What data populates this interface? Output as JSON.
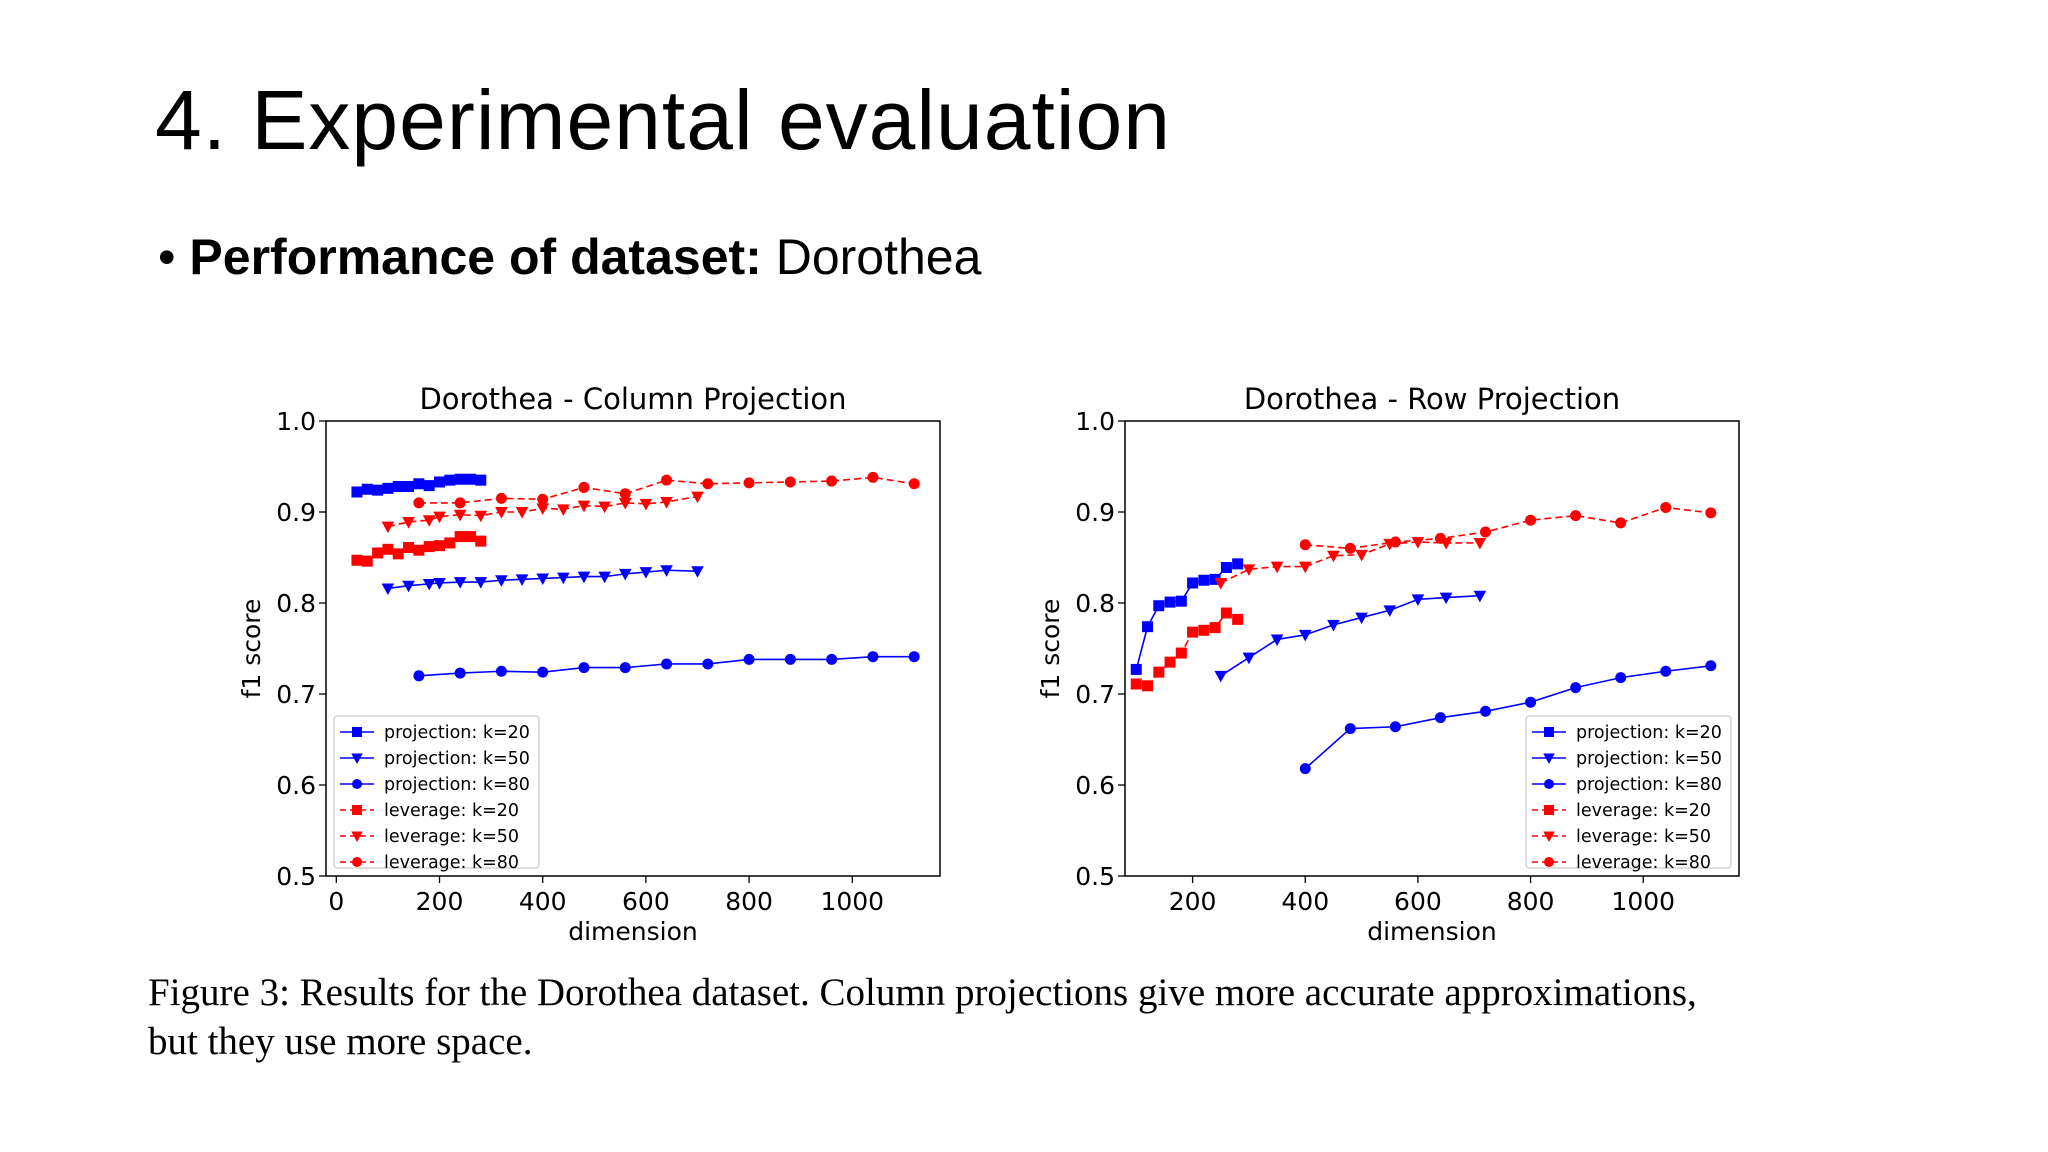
{
  "slide": {
    "title": "4. Experimental evaluation",
    "bullet_bold": "Performance of dataset:",
    "bullet_rest": " Dorothea",
    "bullet_symbol": "•",
    "caption_line1": "Figure 3: Results for the Dorothea dataset. Column projections give more accurate approximations,",
    "caption_line2": "but they use more space."
  },
  "chart_data": [
    {
      "type": "line",
      "title": "Dorothea - Column Projection",
      "xlabel": "dimension",
      "ylabel": "f1 score",
      "xlim": [
        -20,
        1170
      ],
      "ylim": [
        0.5,
        1.0
      ],
      "xticks": [
        0,
        200,
        400,
        600,
        800,
        1000
      ],
      "yticks": [
        0.5,
        0.6,
        0.7,
        0.8,
        0.9,
        1.0
      ],
      "legend_position": "lower-left",
      "series": [
        {
          "name": "projection: k=20",
          "color": "#0000ff",
          "marker": "square",
          "dashed": false,
          "x": [
            40,
            60,
            80,
            100,
            120,
            140,
            160,
            180,
            200,
            220,
            240,
            260,
            280
          ],
          "y": [
            0.922,
            0.925,
            0.924,
            0.926,
            0.928,
            0.928,
            0.931,
            0.929,
            0.933,
            0.935,
            0.936,
            0.936,
            0.935
          ]
        },
        {
          "name": "projection: k=50",
          "color": "#0000ff",
          "marker": "triangle-down",
          "dashed": false,
          "x": [
            100,
            140,
            180,
            200,
            240,
            280,
            320,
            360,
            400,
            440,
            480,
            520,
            560,
            600,
            640,
            700
          ],
          "y": [
            0.816,
            0.819,
            0.821,
            0.822,
            0.823,
            0.823,
            0.825,
            0.826,
            0.827,
            0.828,
            0.829,
            0.829,
            0.832,
            0.834,
            0.836,
            0.835
          ]
        },
        {
          "name": "projection: k=80",
          "color": "#0000ff",
          "marker": "circle",
          "dashed": false,
          "x": [
            160,
            240,
            320,
            400,
            480,
            560,
            640,
            720,
            800,
            880,
            960,
            1040,
            1120
          ],
          "y": [
            0.72,
            0.723,
            0.725,
            0.724,
            0.729,
            0.729,
            0.733,
            0.733,
            0.738,
            0.738,
            0.738,
            0.741,
            0.741
          ]
        },
        {
          "name": "leverage: k=20",
          "color": "#ff0000",
          "marker": "square",
          "dashed": true,
          "x": [
            40,
            60,
            80,
            100,
            120,
            140,
            160,
            180,
            200,
            220,
            240,
            260,
            280
          ],
          "y": [
            0.847,
            0.846,
            0.855,
            0.859,
            0.854,
            0.861,
            0.858,
            0.862,
            0.863,
            0.866,
            0.873,
            0.873,
            0.868
          ]
        },
        {
          "name": "leverage: k=50",
          "color": "#ff0000",
          "marker": "triangle-down",
          "dashed": true,
          "x": [
            100,
            140,
            180,
            200,
            240,
            280,
            320,
            360,
            400,
            440,
            480,
            520,
            560,
            600,
            640,
            700
          ],
          "y": [
            0.884,
            0.889,
            0.891,
            0.895,
            0.897,
            0.896,
            0.9,
            0.9,
            0.904,
            0.903,
            0.907,
            0.906,
            0.91,
            0.909,
            0.911,
            0.917
          ]
        },
        {
          "name": "leverage: k=80",
          "color": "#ff0000",
          "marker": "circle",
          "dashed": true,
          "x": [
            160,
            240,
            320,
            400,
            480,
            560,
            640,
            720,
            800,
            880,
            960,
            1040,
            1120
          ],
          "y": [
            0.91,
            0.91,
            0.915,
            0.914,
            0.927,
            0.92,
            0.935,
            0.931,
            0.932,
            0.933,
            0.934,
            0.938,
            0.931
          ]
        }
      ]
    },
    {
      "type": "line",
      "title": "Dorothea - Row Projection",
      "xlabel": "dimension",
      "ylabel": "f1 score",
      "xlim": [
        80,
        1170
      ],
      "ylim": [
        0.5,
        1.0
      ],
      "xticks": [
        200,
        400,
        600,
        800,
        1000
      ],
      "yticks": [
        0.5,
        0.6,
        0.7,
        0.8,
        0.9,
        1.0
      ],
      "legend_position": "lower-right",
      "series": [
        {
          "name": "projection: k=20",
          "color": "#0000ff",
          "marker": "square",
          "dashed": false,
          "x": [
            100,
            120,
            140,
            160,
            180,
            200,
            220,
            240,
            260,
            280
          ],
          "y": [
            0.727,
            0.774,
            0.797,
            0.801,
            0.802,
            0.822,
            0.825,
            0.826,
            0.839,
            0.843
          ]
        },
        {
          "name": "projection: k=50",
          "color": "#0000ff",
          "marker": "triangle-down",
          "dashed": false,
          "x": [
            250,
            300,
            350,
            400,
            450,
            500,
            550,
            600,
            650,
            710
          ],
          "y": [
            0.72,
            0.74,
            0.76,
            0.765,
            0.776,
            0.784,
            0.792,
            0.804,
            0.806,
            0.808
          ]
        },
        {
          "name": "projection: k=80",
          "color": "#0000ff",
          "marker": "circle",
          "dashed": false,
          "x": [
            400,
            480,
            560,
            640,
            720,
            800,
            880,
            960,
            1040,
            1120
          ],
          "y": [
            0.618,
            0.662,
            0.664,
            0.674,
            0.681,
            0.691,
            0.707,
            0.718,
            0.725,
            0.731
          ]
        },
        {
          "name": "leverage: k=20",
          "color": "#ff0000",
          "marker": "square",
          "dashed": true,
          "x": [
            100,
            120,
            140,
            160,
            180,
            200,
            220,
            240,
            260,
            280
          ],
          "y": [
            0.711,
            0.709,
            0.724,
            0.735,
            0.745,
            0.768,
            0.77,
            0.773,
            0.789,
            0.782
          ]
        },
        {
          "name": "leverage: k=50",
          "color": "#ff0000",
          "marker": "triangle-down",
          "dashed": true,
          "x": [
            250,
            300,
            350,
            400,
            450,
            500,
            550,
            600,
            650,
            710
          ],
          "y": [
            0.822,
            0.837,
            0.84,
            0.84,
            0.852,
            0.853,
            0.865,
            0.867,
            0.866,
            0.866
          ]
        },
        {
          "name": "leverage: k=80",
          "color": "#ff0000",
          "marker": "circle",
          "dashed": true,
          "x": [
            400,
            480,
            560,
            640,
            720,
            800,
            880,
            960,
            1040,
            1120
          ],
          "y": [
            0.864,
            0.86,
            0.867,
            0.871,
            0.878,
            0.891,
            0.896,
            0.888,
            0.905,
            0.899
          ]
        }
      ]
    }
  ]
}
